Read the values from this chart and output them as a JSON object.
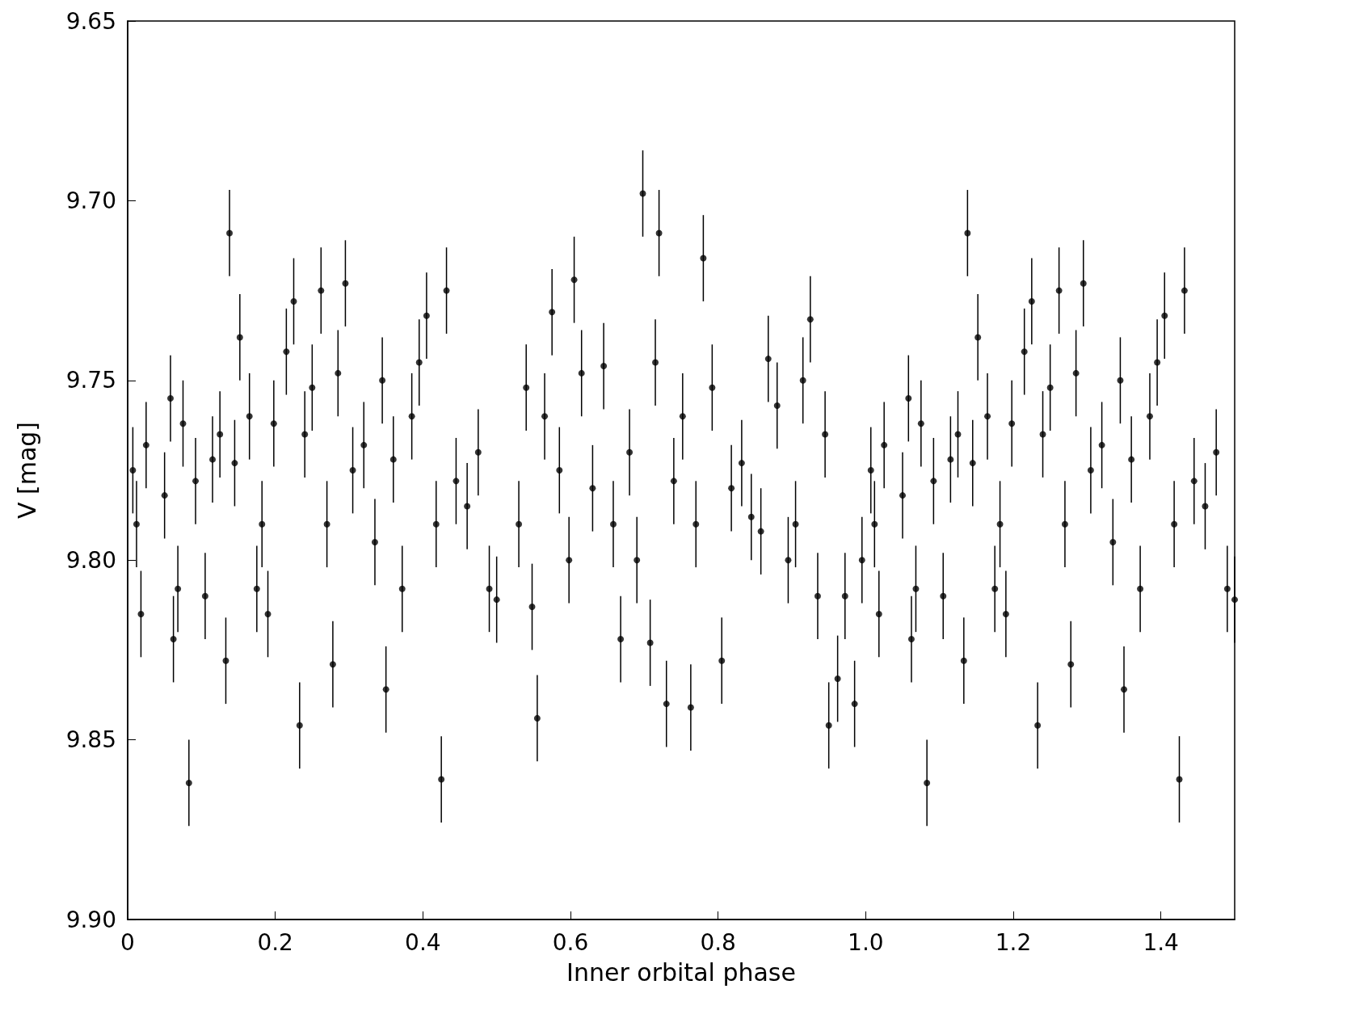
{
  "chart_data": {
    "type": "scatter",
    "xlabel": "Inner orbital phase",
    "ylabel": "V [mag]",
    "color": "#000000",
    "marker": "circle",
    "xlim": [
      0,
      1.5
    ],
    "ylim": [
      9.9,
      9.65
    ],
    "xticks": [
      0,
      0.2,
      0.4,
      0.6,
      0.8,
      {
        "value": 1,
        "label": "1.0"
      },
      1.2,
      1.4
    ],
    "yticks": [
      9.65,
      {
        "value": 9.7,
        "label": "9.70"
      },
      9.75,
      {
        "value": 9.8,
        "label": "9.80"
      },
      9.85,
      {
        "value": 9.9,
        "label": "9.90"
      }
    ],
    "x": [
      0.007,
      0.012,
      0.018,
      0.025,
      0.05,
      0.058,
      0.062,
      0.068,
      0.075,
      0.083,
      0.092,
      0.105,
      0.115,
      0.125,
      0.133,
      0.138,
      0.145,
      0.152,
      0.165,
      0.175,
      0.182,
      0.19,
      0.198,
      0.215,
      0.225,
      0.233,
      0.24,
      0.25,
      0.262,
      0.27,
      0.278,
      0.285,
      0.295,
      0.305,
      0.32,
      0.335,
      0.345,
      0.35,
      0.36,
      0.372,
      0.385,
      0.395,
      0.405,
      0.418,
      0.425,
      0.432,
      0.445,
      0.46,
      0.475,
      0.49,
      0.5,
      0.53,
      0.54,
      0.548,
      0.555,
      0.565,
      0.575,
      0.585,
      0.598,
      0.605,
      0.615,
      0.63,
      0.645,
      0.658,
      0.668,
      0.68,
      0.69,
      0.698,
      0.708,
      0.715,
      0.72,
      0.73,
      0.74,
      0.752,
      0.763,
      0.77,
      0.78,
      0.792,
      0.805,
      0.818,
      0.832,
      0.845,
      0.858,
      0.868,
      0.88,
      0.895,
      0.905,
      0.915,
      0.925,
      0.935,
      0.945,
      0.95,
      0.962,
      0.972,
      0.985,
      0.995,
      1.007,
      1.012,
      1.018,
      1.025,
      1.05,
      1.058,
      1.062,
      1.068,
      1.075,
      1.083,
      1.092,
      1.105,
      1.115,
      1.125,
      1.133,
      1.138,
      1.145,
      1.152,
      1.165,
      1.175,
      1.182,
      1.19,
      1.198,
      1.215,
      1.225,
      1.233,
      1.24,
      1.25,
      1.262,
      1.27,
      1.278,
      1.285,
      1.295,
      1.305,
      1.32,
      1.335,
      1.345,
      1.35,
      1.36,
      1.372,
      1.385,
      1.395,
      1.405,
      1.418,
      1.425,
      1.432,
      1.445,
      1.46,
      1.475,
      1.49,
      1.5
    ],
    "values": [
      9.775,
      9.79,
      9.815,
      9.768,
      9.782,
      9.755,
      9.822,
      9.808,
      9.762,
      9.862,
      9.778,
      9.81,
      9.772,
      9.765,
      9.828,
      9.709,
      9.773,
      9.738,
      9.76,
      9.808,
      9.79,
      9.815,
      9.762,
      9.742,
      9.728,
      9.846,
      9.765,
      9.752,
      9.725,
      9.79,
      9.829,
      9.748,
      9.723,
      9.775,
      9.768,
      9.795,
      9.75,
      9.836,
      9.772,
      9.808,
      9.76,
      9.745,
      9.732,
      9.79,
      9.861,
      9.725,
      9.778,
      9.785,
      9.77,
      9.808,
      9.811,
      9.79,
      9.752,
      9.813,
      9.844,
      9.76,
      9.731,
      9.775,
      9.8,
      9.722,
      9.748,
      9.78,
      9.746,
      9.79,
      9.822,
      9.77,
      9.8,
      9.698,
      9.823,
      9.745,
      9.709,
      9.84,
      9.778,
      9.76,
      9.841,
      9.79,
      9.716,
      9.752,
      9.828,
      9.78,
      9.773,
      9.788,
      9.792,
      9.744,
      9.757,
      9.8,
      9.79,
      9.75,
      9.733,
      9.81,
      9.765,
      9.846,
      9.833,
      9.81,
      9.84,
      9.8,
      9.775,
      9.79,
      9.815,
      9.768,
      9.782,
      9.755,
      9.822,
      9.808,
      9.762,
      9.862,
      9.778,
      9.81,
      9.772,
      9.765,
      9.828,
      9.709,
      9.773,
      9.738,
      9.76,
      9.808,
      9.79,
      9.815,
      9.762,
      9.742,
      9.728,
      9.846,
      9.765,
      9.752,
      9.725,
      9.79,
      9.829,
      9.748,
      9.723,
      9.775,
      9.768,
      9.795,
      9.75,
      9.836,
      9.772,
      9.808,
      9.76,
      9.745,
      9.732,
      9.79,
      9.861,
      9.725,
      9.778,
      9.785,
      9.77,
      9.808,
      9.811
    ],
    "errors": [
      0.012,
      0.012,
      0.012,
      0.012,
      0.012,
      0.012,
      0.012,
      0.012,
      0.012,
      0.012,
      0.012,
      0.012,
      0.012,
      0.012,
      0.012,
      0.012,
      0.012,
      0.012,
      0.012,
      0.012,
      0.012,
      0.012,
      0.012,
      0.012,
      0.012,
      0.012,
      0.012,
      0.012,
      0.012,
      0.012,
      0.012,
      0.012,
      0.012,
      0.012,
      0.012,
      0.012,
      0.012,
      0.012,
      0.012,
      0.012,
      0.012,
      0.012,
      0.012,
      0.012,
      0.012,
      0.012,
      0.012,
      0.012,
      0.012,
      0.012,
      0.012,
      0.012,
      0.012,
      0.012,
      0.012,
      0.012,
      0.012,
      0.012,
      0.012,
      0.012,
      0.012,
      0.012,
      0.012,
      0.012,
      0.012,
      0.012,
      0.012,
      0.012,
      0.012,
      0.012,
      0.012,
      0.012,
      0.012,
      0.012,
      0.012,
      0.012,
      0.012,
      0.012,
      0.012,
      0.012,
      0.012,
      0.012,
      0.012,
      0.012,
      0.012,
      0.012,
      0.012,
      0.012,
      0.012,
      0.012,
      0.012,
      0.012,
      0.012,
      0.012,
      0.012,
      0.012,
      0.012,
      0.012,
      0.012,
      0.012,
      0.012,
      0.012,
      0.012,
      0.012,
      0.012,
      0.012,
      0.012,
      0.012,
      0.012,
      0.012,
      0.012,
      0.012,
      0.012,
      0.012,
      0.012,
      0.012,
      0.012,
      0.012,
      0.012,
      0.012,
      0.012,
      0.012,
      0.012,
      0.012,
      0.012,
      0.012,
      0.012,
      0.012,
      0.012,
      0.012,
      0.012,
      0.012,
      0.012,
      0.012,
      0.012,
      0.012,
      0.012,
      0.012,
      0.012,
      0.012,
      0.012,
      0.012,
      0.012,
      0.012,
      0.012,
      0.012,
      0.012
    ]
  }
}
